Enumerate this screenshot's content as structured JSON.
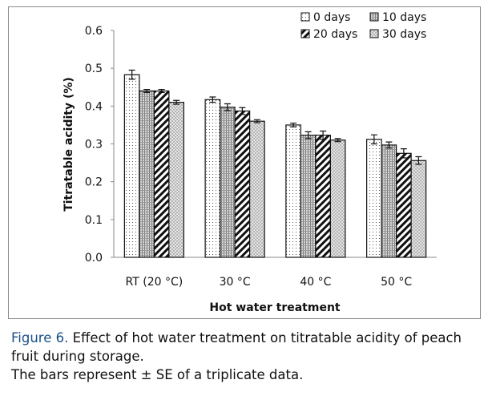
{
  "chart_data": {
    "type": "bar",
    "title": "",
    "xlabel": "Hot water treatment",
    "ylabel": "Titratable acidity (%)",
    "ylim": [
      0,
      0.6
    ],
    "yticks": [
      "0.0",
      "0.1",
      "0.2",
      "0.3",
      "0.4",
      "0.5",
      "0.6"
    ],
    "grid": false,
    "legend_position": "top-right",
    "categories": [
      "RT (20 °C)",
      "30 °C",
      "40 °C",
      "50 °C"
    ],
    "series": [
      {
        "name": "0 days",
        "values": [
          0.483,
          0.417,
          0.35,
          0.312
        ],
        "errors": [
          0.012,
          0.007,
          0.005,
          0.012
        ]
      },
      {
        "name": "10 days",
        "values": [
          0.44,
          0.397,
          0.323,
          0.297
        ],
        "errors": [
          0.004,
          0.009,
          0.009,
          0.008
        ]
      },
      {
        "name": "20 days",
        "values": [
          0.44,
          0.387,
          0.323,
          0.275
        ],
        "errors": [
          0.004,
          0.009,
          0.011,
          0.012
        ]
      },
      {
        "name": "30 days",
        "values": [
          0.41,
          0.36,
          0.31,
          0.256
        ],
        "errors": [
          0.005,
          0.004,
          0.004,
          0.01
        ]
      }
    ]
  },
  "caption": {
    "label": "Figure 6.",
    "text": " Effect of hot water treatment on titratable acidity of peach fruit during storage.",
    "note": "The bars represent ± SE of a triplicate data."
  }
}
